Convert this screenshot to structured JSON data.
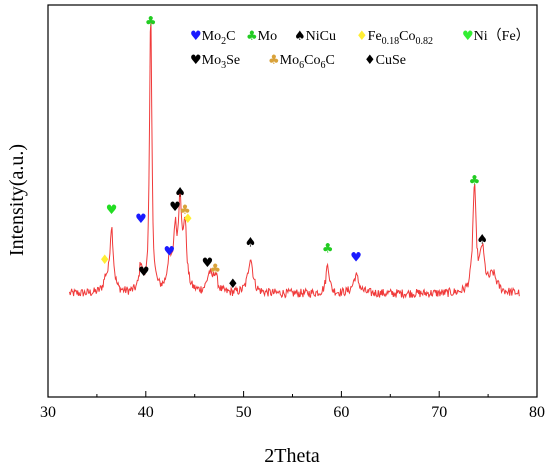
{
  "chart_data": {
    "type": "line",
    "xlabel": "2Theta",
    "ylabel": "Intensity(a.u.)",
    "xlim": [
      30,
      80
    ],
    "xticks": [
      30,
      40,
      50,
      60,
      70,
      80
    ],
    "ylim": [
      0,
      100
    ],
    "grid": false,
    "legend_position": "top-right",
    "line_color": "#f03a3a",
    "baseline": 14,
    "noise": 1.5,
    "peaks": [
      {
        "x": 35.9,
        "y": 4,
        "w": 0.25
      },
      {
        "x": 36.5,
        "y": 22,
        "w": 0.22
      },
      {
        "x": 39.5,
        "y": 9,
        "w": 0.2
      },
      {
        "x": 40.5,
        "y": 94,
        "w": 0.14
      },
      {
        "x": 42.4,
        "y": 10,
        "w": 0.25
      },
      {
        "x": 43.0,
        "y": 19,
        "w": 0.22
      },
      {
        "x": 43.5,
        "y": 30,
        "w": 0.18
      },
      {
        "x": 44.0,
        "y": 22,
        "w": 0.2
      },
      {
        "x": 46.5,
        "y": 6,
        "w": 0.3
      },
      {
        "x": 47.1,
        "y": 6,
        "w": 0.25
      },
      {
        "x": 50.7,
        "y": 12,
        "w": 0.3
      },
      {
        "x": 58.6,
        "y": 10,
        "w": 0.2
      },
      {
        "x": 61.5,
        "y": 6,
        "w": 0.35
      },
      {
        "x": 73.6,
        "y": 35,
        "w": 0.2
      },
      {
        "x": 74.4,
        "y": 14,
        "w": 0.28
      },
      {
        "x": 75.5,
        "y": 6,
        "w": 0.45
      }
    ],
    "legend": [
      {
        "symbol": "♥",
        "color": "#1a1aff",
        "label": "Mo",
        "sub": "2",
        "tail": "C"
      },
      {
        "symbol": "♣",
        "color": "#22cc22",
        "label": "Mo",
        "sub": "",
        "tail": ""
      },
      {
        "symbol": "♠",
        "color": "#000000",
        "label": "NiCu",
        "sub": "",
        "tail": ""
      },
      {
        "symbol": "♦",
        "color": "#ffee33",
        "label": "Fe",
        "sub": "0.18",
        "tail": "Co",
        "sub2": "0.82"
      },
      {
        "symbol": "♥",
        "color": "#33ee33",
        "label": "Ni（Fe）",
        "sub": "",
        "tail": ""
      },
      {
        "symbol": "♥",
        "color": "#000000",
        "label": "Mo",
        "sub": "3",
        "tail": "Se"
      },
      {
        "symbol": "♣",
        "color": "#d9a23a",
        "label": "Mo",
        "sub": "6",
        "tail": "Co",
        "sub2": "6",
        "tail2": "C"
      },
      {
        "symbol": "♦",
        "color": "#000000",
        "label": "CuSe",
        "sub": "",
        "tail": ""
      }
    ],
    "markers": [
      {
        "x": 35.8,
        "y": 24,
        "symbol": "♦",
        "color": "#ffee33"
      },
      {
        "x": 36.5,
        "y": 41,
        "symbol": "♥",
        "color": "#22dd22"
      },
      {
        "x": 39.5,
        "y": 38,
        "symbol": "♥",
        "color": "#1a1aff"
      },
      {
        "x": 39.8,
        "y": 20,
        "symbol": "♥",
        "color": "#000000"
      },
      {
        "x": 40.5,
        "y": 105,
        "symbol": "♣",
        "color": "#22cc22"
      },
      {
        "x": 42.4,
        "y": 27,
        "symbol": "♥",
        "color": "#1a1aff"
      },
      {
        "x": 43.0,
        "y": 42,
        "symbol": "♥",
        "color": "#000000"
      },
      {
        "x": 43.5,
        "y": 47,
        "symbol": "♠",
        "color": "#000000"
      },
      {
        "x": 44.0,
        "y": 41,
        "symbol": "♣",
        "color": "#d9a23a"
      },
      {
        "x": 44.3,
        "y": 38,
        "symbol": "♦",
        "color": "#ffee33"
      },
      {
        "x": 46.3,
        "y": 23,
        "symbol": "♥",
        "color": "#000000"
      },
      {
        "x": 47.1,
        "y": 21,
        "symbol": "♣",
        "color": "#d9a23a"
      },
      {
        "x": 48.9,
        "y": 16,
        "symbol": "♦",
        "color": "#000000"
      },
      {
        "x": 50.7,
        "y": 30,
        "symbol": "♠",
        "color": "#000000"
      },
      {
        "x": 58.6,
        "y": 28,
        "symbol": "♣",
        "color": "#22cc22"
      },
      {
        "x": 61.5,
        "y": 25,
        "symbol": "♥",
        "color": "#1a1aff"
      },
      {
        "x": 73.6,
        "y": 51,
        "symbol": "♣",
        "color": "#22cc22"
      },
      {
        "x": 74.4,
        "y": 31,
        "symbol": "♠",
        "color": "#000000"
      }
    ]
  }
}
